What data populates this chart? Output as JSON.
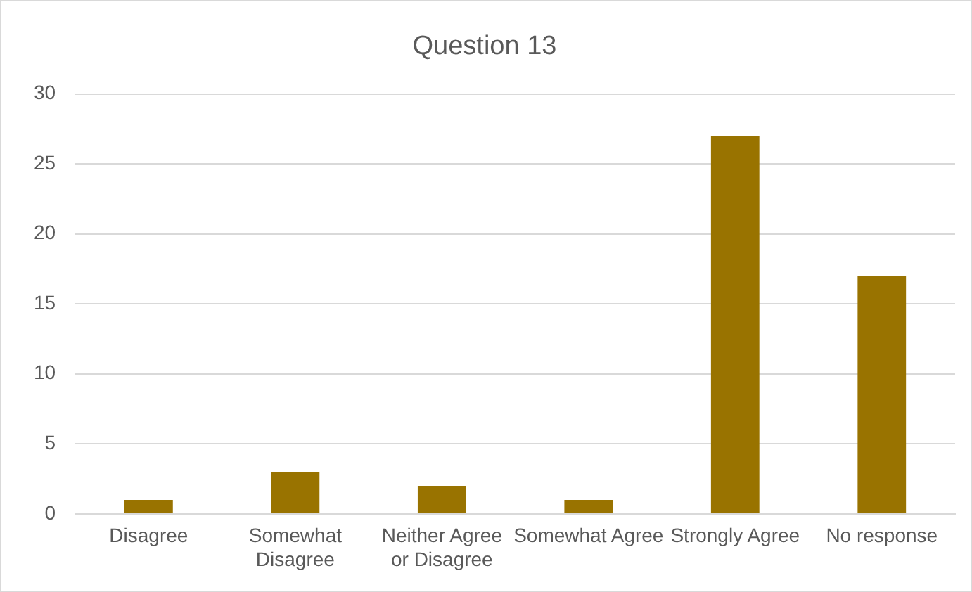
{
  "chart_data": {
    "type": "bar",
    "title": "Question 13",
    "categories": [
      "Disagree",
      "Somewhat Disagree",
      "Neither Agree or Disagree",
      "Somewhat Agree",
      "Strongly Agree",
      "No response"
    ],
    "values": [
      1,
      3,
      2,
      1,
      27,
      17
    ],
    "color": "#997300",
    "ylim": [
      0,
      30
    ],
    "yticks": [
      0,
      5,
      10,
      15,
      20,
      25,
      30
    ],
    "grid": "y",
    "legend": false
  }
}
